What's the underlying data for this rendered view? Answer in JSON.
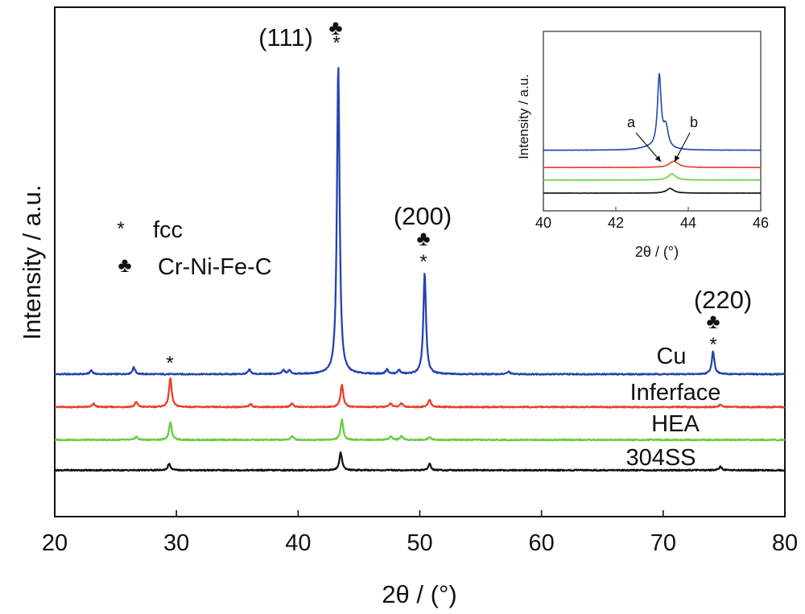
{
  "chart_data": [
    {
      "type": "line",
      "xlabel": "2θ / (°)",
      "ylabel": "Intensity / a.u.",
      "xlim": [
        20,
        80
      ],
      "xticks": [
        "20",
        "30",
        "40",
        "50",
        "60",
        "70",
        "80"
      ],
      "yticks": "none",
      "grid": false,
      "series": [
        {
          "name": "Cu",
          "color": "#2544b0",
          "baseline": 0.0,
          "peaks": [
            [
              23.0,
              0.3
            ],
            [
              26.5,
              0.55
            ],
            [
              36.0,
              0.35
            ],
            [
              38.8,
              0.3
            ],
            [
              39.3,
              0.3
            ],
            [
              43.3,
              24.5
            ],
            [
              47.3,
              0.35
            ],
            [
              48.3,
              0.3
            ],
            [
              50.4,
              8.0
            ],
            [
              57.3,
              0.2
            ],
            [
              74.1,
              1.8
            ]
          ]
        },
        {
          "name": "Inferface",
          "color": "#e8412b",
          "baseline": -2.6,
          "peaks": [
            [
              23.2,
              0.25
            ],
            [
              26.7,
              0.4
            ],
            [
              29.5,
              2.3
            ],
            [
              36.1,
              0.25
            ],
            [
              39.5,
              0.3
            ],
            [
              43.6,
              1.8
            ],
            [
              47.6,
              0.3
            ],
            [
              48.5,
              0.3
            ],
            [
              50.8,
              0.6
            ],
            [
              74.7,
              0.2
            ]
          ]
        },
        {
          "name": "HEA",
          "color": "#66cc44",
          "baseline": -5.2,
          "peaks": [
            [
              26.7,
              0.25
            ],
            [
              29.5,
              1.4
            ],
            [
              39.5,
              0.3
            ],
            [
              43.6,
              1.6
            ],
            [
              47.6,
              0.3
            ],
            [
              48.5,
              0.3
            ],
            [
              50.8,
              0.25
            ]
          ]
        },
        {
          "name": "304SS",
          "color": "#111111",
          "baseline": -7.6,
          "peaks": [
            [
              29.4,
              0.5
            ],
            [
              43.5,
              1.4
            ],
            [
              50.8,
              0.5
            ],
            [
              74.7,
              0.3
            ]
          ]
        }
      ],
      "annotations": [
        {
          "text": "(111)",
          "symbols": [
            "♣",
            "*"
          ],
          "x": 43.3
        },
        {
          "text": "(200)",
          "symbols": [
            "♣",
            "*"
          ],
          "x": 50.4
        },
        {
          "text": "(220)",
          "symbols": [
            "♣",
            "*"
          ],
          "x": 74.1
        },
        {
          "text": "",
          "symbols": [
            "*"
          ],
          "x": 29.6
        }
      ],
      "legend": {
        "placement": "left-middle",
        "entries": [
          {
            "symbol": "*",
            "label": "fcc"
          },
          {
            "symbol": "♣",
            "label": "Cr-Ni-Fe-C"
          }
        ]
      }
    },
    {
      "type": "line",
      "role": "inset",
      "placement": "top-right",
      "xlabel": "2θ / (°)",
      "ylabel": "Intensity / a.u.",
      "xlim": [
        40,
        46
      ],
      "xticks": [
        "40",
        "42",
        "44",
        "46"
      ],
      "yticks": "none",
      "series": [
        {
          "name": "Cu",
          "color": "#2544b0",
          "baseline": 8.2,
          "peaks": [
            [
              43.2,
              13.8,
              0.06
            ],
            [
              43.38,
              4.0,
              0.08
            ],
            [
              42.9,
              0.4,
              0.3
            ]
          ]
        },
        {
          "name": "Inferface",
          "color": "#e8412b",
          "baseline": 4.9,
          "peaks": [
            [
              43.6,
              1.2,
              0.15
            ]
          ]
        },
        {
          "name": "HEA",
          "color": "#66cc44",
          "baseline": 2.5,
          "peaks": [
            [
              43.55,
              1.2,
              0.12
            ]
          ]
        },
        {
          "name": "304SS",
          "color": "#111111",
          "baseline": 0.0,
          "peaks": [
            [
              43.5,
              0.9,
              0.12
            ]
          ]
        }
      ],
      "annotations": [
        {
          "text": "a",
          "x": 43.25
        },
        {
          "text": "b",
          "x": 43.6
        }
      ]
    }
  ]
}
